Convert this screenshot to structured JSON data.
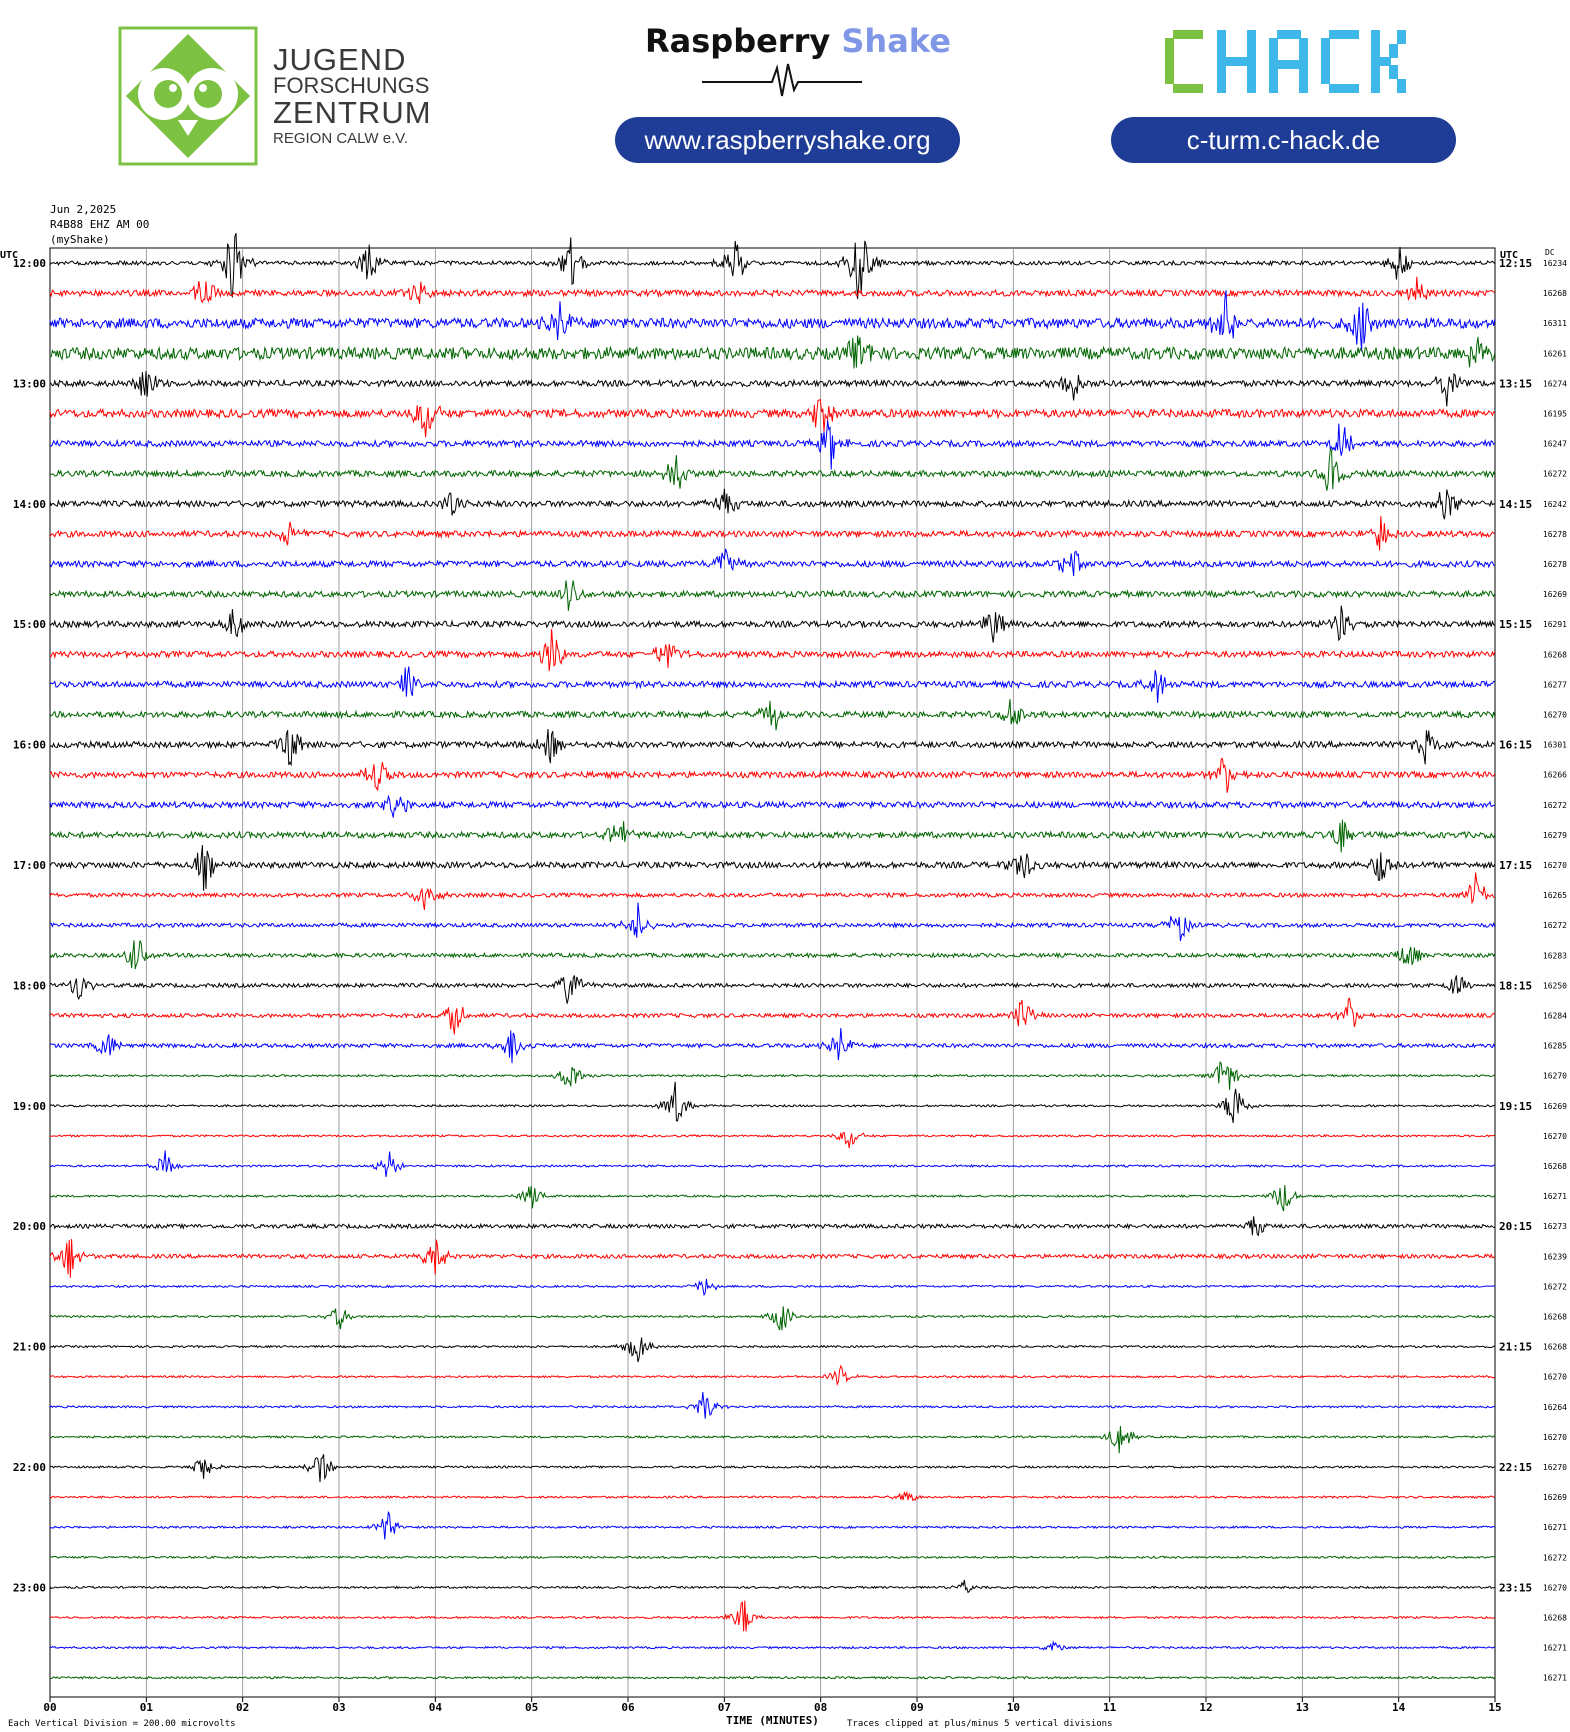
{
  "logos": {
    "jfz": {
      "line1": "JUGEND",
      "line2": "FORSCHUNGS",
      "line3": "ZENTRUM",
      "line4": "REGION CALW e.V."
    },
    "raspberry_shake": {
      "word1": "Raspberry",
      "word2": "Shake",
      "url": "www.raspberryshake.org"
    },
    "chack": {
      "name": "CHACK",
      "url": "c-turm.c-hack.de"
    }
  },
  "colors": {
    "trace_cycle": [
      "#000000",
      "#ff0000",
      "#0000ff",
      "#006400"
    ],
    "pill": "#1f3c96",
    "jfz_green": "#7dc142"
  },
  "header": {
    "date": "Jun 2,2025",
    "station": "R4B88 EHZ AM 00",
    "source": "(myShake)"
  },
  "chart_data": {
    "type": "helicorder",
    "left_axis_label": "UTC",
    "right_axis_label": "UTC",
    "dc_label": "DC",
    "rows_per_hour": 4,
    "minutes_per_row": 15,
    "left_hour_labels": [
      "12:00",
      "13:00",
      "14:00",
      "15:00",
      "16:00",
      "17:00",
      "18:00",
      "19:00",
      "20:00",
      "21:00",
      "22:00",
      "23:00"
    ],
    "right_hour_labels": [
      "12:15",
      "13:15",
      "14:15",
      "15:15",
      "16:15",
      "17:15",
      "18:15",
      "19:15",
      "20:15",
      "21:15",
      "22:15",
      "23:15"
    ],
    "dc_offsets": [
      16234,
      16268,
      16311,
      16261,
      16274,
      16195,
      16247,
      16272,
      16242,
      16278,
      16278,
      16269,
      16291,
      16268,
      16277,
      16270,
      16301,
      16266,
      16272,
      16279,
      16270,
      16265,
      16272,
      16283,
      16250,
      16284,
      16285,
      16270,
      16269,
      16270,
      16268,
      16271,
      16273,
      16239,
      16272,
      16268,
      16268,
      16270,
      16264,
      16270,
      16270,
      16269,
      16271,
      16272,
      16270,
      16268,
      16271,
      16271
    ],
    "x_ticks": [
      "00",
      "01",
      "02",
      "03",
      "04",
      "05",
      "06",
      "07",
      "08",
      "09",
      "10",
      "11",
      "12",
      "13",
      "14",
      "15"
    ],
    "xlabel": "TIME (MINUTES)",
    "scale_note": "Each Vertical Division = 200.00 microvolts",
    "clip_note": "Traces clipped at plus/minus 5 vertical divisions",
    "noise_level": [
      2,
      3,
      5,
      6,
      3,
      4,
      3,
      3,
      3,
      3,
      3,
      3,
      3,
      3,
      3,
      3,
      3,
      3,
      3,
      3,
      3,
      2,
      2,
      2,
      2,
      2,
      2,
      1,
      1,
      1,
      1,
      1,
      2,
      2,
      1,
      1,
      1,
      1,
      1,
      1,
      1,
      1,
      1,
      1,
      1,
      1,
      1,
      1
    ],
    "events": [
      {
        "row": 0,
        "minute": 1.9,
        "amp": 12
      },
      {
        "row": 0,
        "minute": 3.3,
        "amp": 8
      },
      {
        "row": 0,
        "minute": 5.4,
        "amp": 9
      },
      {
        "row": 0,
        "minute": 7.1,
        "amp": 10
      },
      {
        "row": 0,
        "minute": 8.4,
        "amp": 14
      },
      {
        "row": 0,
        "minute": 14.0,
        "amp": 6
      },
      {
        "row": 1,
        "minute": 1.6,
        "amp": 6
      },
      {
        "row": 1,
        "minute": 3.8,
        "amp": 5
      },
      {
        "row": 1,
        "minute": 14.2,
        "amp": 5
      },
      {
        "row": 2,
        "minute": 5.3,
        "amp": 6
      },
      {
        "row": 2,
        "minute": 12.2,
        "amp": 12
      },
      {
        "row": 2,
        "minute": 13.6,
        "amp": 8
      },
      {
        "row": 3,
        "minute": 8.4,
        "amp": 7
      },
      {
        "row": 3,
        "minute": 14.8,
        "amp": 6
      },
      {
        "row": 4,
        "minute": 1.0,
        "amp": 6
      },
      {
        "row": 4,
        "minute": 10.6,
        "amp": 7
      },
      {
        "row": 4,
        "minute": 14.5,
        "amp": 6
      },
      {
        "row": 5,
        "minute": 3.9,
        "amp": 8
      },
      {
        "row": 5,
        "minute": 8.0,
        "amp": 7
      },
      {
        "row": 6,
        "minute": 8.1,
        "amp": 8
      },
      {
        "row": 6,
        "minute": 13.4,
        "amp": 6
      },
      {
        "row": 7,
        "minute": 6.5,
        "amp": 6
      },
      {
        "row": 7,
        "minute": 13.3,
        "amp": 7
      },
      {
        "row": 8,
        "minute": 4.2,
        "amp": 6
      },
      {
        "row": 8,
        "minute": 7.0,
        "amp": 6
      },
      {
        "row": 8,
        "minute": 14.5,
        "amp": 7
      },
      {
        "row": 9,
        "minute": 2.5,
        "amp": 5
      },
      {
        "row": 9,
        "minute": 13.8,
        "amp": 6
      },
      {
        "row": 10,
        "minute": 7.0,
        "amp": 6
      },
      {
        "row": 10,
        "minute": 10.6,
        "amp": 6
      },
      {
        "row": 11,
        "minute": 5.4,
        "amp": 6
      },
      {
        "row": 12,
        "minute": 1.9,
        "amp": 6
      },
      {
        "row": 12,
        "minute": 9.8,
        "amp": 6
      },
      {
        "row": 12,
        "minute": 13.4,
        "amp": 6
      },
      {
        "row": 13,
        "minute": 5.2,
        "amp": 8
      },
      {
        "row": 13,
        "minute": 6.4,
        "amp": 6
      },
      {
        "row": 14,
        "minute": 3.7,
        "amp": 6
      },
      {
        "row": 14,
        "minute": 11.5,
        "amp": 6
      },
      {
        "row": 15,
        "minute": 7.5,
        "amp": 6
      },
      {
        "row": 15,
        "minute": 10.0,
        "amp": 6
      },
      {
        "row": 16,
        "minute": 2.5,
        "amp": 7
      },
      {
        "row": 16,
        "minute": 5.2,
        "amp": 6
      },
      {
        "row": 16,
        "minute": 14.3,
        "amp": 6
      },
      {
        "row": 17,
        "minute": 3.4,
        "amp": 6
      },
      {
        "row": 17,
        "minute": 12.2,
        "amp": 6
      },
      {
        "row": 18,
        "minute": 3.6,
        "amp": 6
      },
      {
        "row": 19,
        "minute": 5.9,
        "amp": 6
      },
      {
        "row": 19,
        "minute": 13.4,
        "amp": 6
      },
      {
        "row": 20,
        "minute": 1.6,
        "amp": 7
      },
      {
        "row": 20,
        "minute": 10.1,
        "amp": 6
      },
      {
        "row": 20,
        "minute": 13.8,
        "amp": 7
      },
      {
        "row": 21,
        "minute": 3.9,
        "amp": 6
      },
      {
        "row": 21,
        "minute": 14.8,
        "amp": 6
      },
      {
        "row": 22,
        "minute": 6.1,
        "amp": 6
      },
      {
        "row": 22,
        "minute": 11.7,
        "amp": 7
      },
      {
        "row": 23,
        "minute": 0.9,
        "amp": 6
      },
      {
        "row": 23,
        "minute": 14.1,
        "amp": 5
      },
      {
        "row": 24,
        "minute": 0.3,
        "amp": 5
      },
      {
        "row": 24,
        "minute": 5.4,
        "amp": 7
      },
      {
        "row": 24,
        "minute": 14.6,
        "amp": 4
      },
      {
        "row": 25,
        "minute": 4.2,
        "amp": 6
      },
      {
        "row": 25,
        "minute": 10.1,
        "amp": 6
      },
      {
        "row": 25,
        "minute": 13.5,
        "amp": 5
      },
      {
        "row": 26,
        "minute": 0.6,
        "amp": 5
      },
      {
        "row": 26,
        "minute": 4.8,
        "amp": 6
      },
      {
        "row": 26,
        "minute": 8.2,
        "amp": 5
      },
      {
        "row": 27,
        "minute": 5.4,
        "amp": 5
      },
      {
        "row": 27,
        "minute": 12.2,
        "amp": 8
      },
      {
        "row": 28,
        "minute": 6.5,
        "amp": 7
      },
      {
        "row": 28,
        "minute": 12.3,
        "amp": 8
      },
      {
        "row": 29,
        "minute": 8.3,
        "amp": 4
      },
      {
        "row": 30,
        "minute": 1.2,
        "amp": 4
      },
      {
        "row": 30,
        "minute": 3.5,
        "amp": 5
      },
      {
        "row": 31,
        "minute": 5.0,
        "amp": 4
      },
      {
        "row": 31,
        "minute": 12.8,
        "amp": 5
      },
      {
        "row": 32,
        "minute": 12.5,
        "amp": 4
      },
      {
        "row": 33,
        "minute": 0.2,
        "amp": 7
      },
      {
        "row": 33,
        "minute": 4.0,
        "amp": 8
      },
      {
        "row": 34,
        "minute": 6.8,
        "amp": 3
      },
      {
        "row": 35,
        "minute": 3.0,
        "amp": 4
      },
      {
        "row": 35,
        "minute": 7.6,
        "amp": 5
      },
      {
        "row": 36,
        "minute": 6.1,
        "amp": 5
      },
      {
        "row": 37,
        "minute": 8.2,
        "amp": 3
      },
      {
        "row": 38,
        "minute": 6.8,
        "amp": 5
      },
      {
        "row": 39,
        "minute": 11.1,
        "amp": 6
      },
      {
        "row": 40,
        "minute": 1.6,
        "amp": 4
      },
      {
        "row": 40,
        "minute": 2.8,
        "amp": 6
      },
      {
        "row": 41,
        "minute": 8.9,
        "amp": 2
      },
      {
        "row": 42,
        "minute": 3.5,
        "amp": 5
      },
      {
        "row": 44,
        "minute": 9.5,
        "amp": 2
      },
      {
        "row": 45,
        "minute": 7.2,
        "amp": 6
      },
      {
        "row": 46,
        "minute": 10.4,
        "amp": 2
      }
    ]
  }
}
